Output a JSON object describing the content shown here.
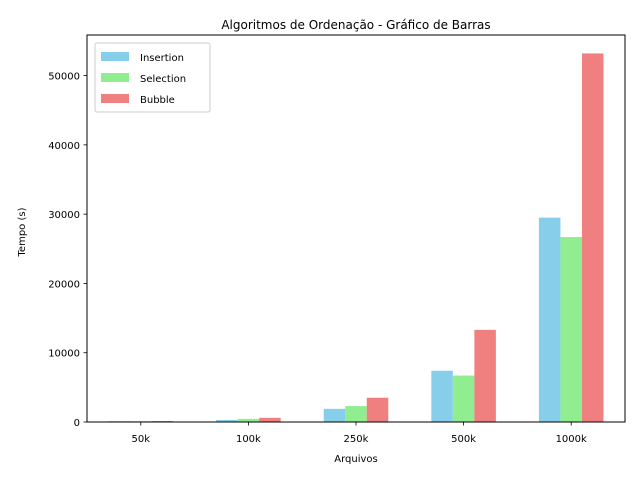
{
  "chart_data": {
    "type": "bar",
    "title": "Algoritmos de Ordenação - Gráfico de Barras",
    "xlabel": "Arquivos",
    "ylabel": "Tempo (s)",
    "categories": [
      "50k",
      "100k",
      "250k",
      "500k",
      "1000k"
    ],
    "series": [
      {
        "name": "Insertion",
        "color": "#87ceeb",
        "values": [
          120,
          300,
          1900,
          7400,
          29500
        ]
      },
      {
        "name": "Selection",
        "color": "#90ee90",
        "values": [
          110,
          450,
          2300,
          6700,
          26700
        ]
      },
      {
        "name": "Bubble",
        "color": "#f08080",
        "values": [
          140,
          600,
          3500,
          13300,
          53200
        ]
      }
    ],
    "ylim": [
      0,
      55860
    ],
    "yticks": [
      0,
      10000,
      20000,
      30000,
      40000,
      50000
    ],
    "legend": "top-left",
    "grid": false
  }
}
